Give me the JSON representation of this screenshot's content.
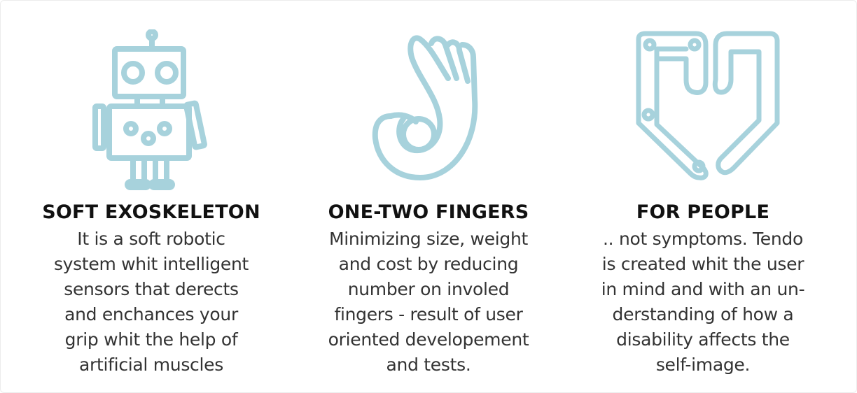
{
  "features": [
    {
      "icon": "robot-icon",
      "title": "SOFT EXOSKELETON",
      "lines": [
        "It is a soft robotic",
        "system whit intelligent",
        "sensors that derects",
        "and enchances your",
        "grip whit the help of",
        "artificial muscles"
      ]
    },
    {
      "icon": "ok-hand-icon",
      "title": "ONE-TWO FINGERS",
      "lines": [
        "Minimizing size, weight",
        "and cost by reducing",
        "number on involed",
        "fingers - result of user",
        "oriented developement",
        "and tests."
      ]
    },
    {
      "icon": "hand-heart-icon",
      "title": "FOR PEOPLE",
      "lines": [
        ".. not symptoms. Tendo",
        "is created whit the user",
        "in mind and with an un-",
        "derstanding of how a",
        "disability affects the",
        "self-image."
      ]
    }
  ],
  "colors": {
    "icon_stroke": "#a7d2dc",
    "title_text": "#111111",
    "body_text": "#333333"
  }
}
